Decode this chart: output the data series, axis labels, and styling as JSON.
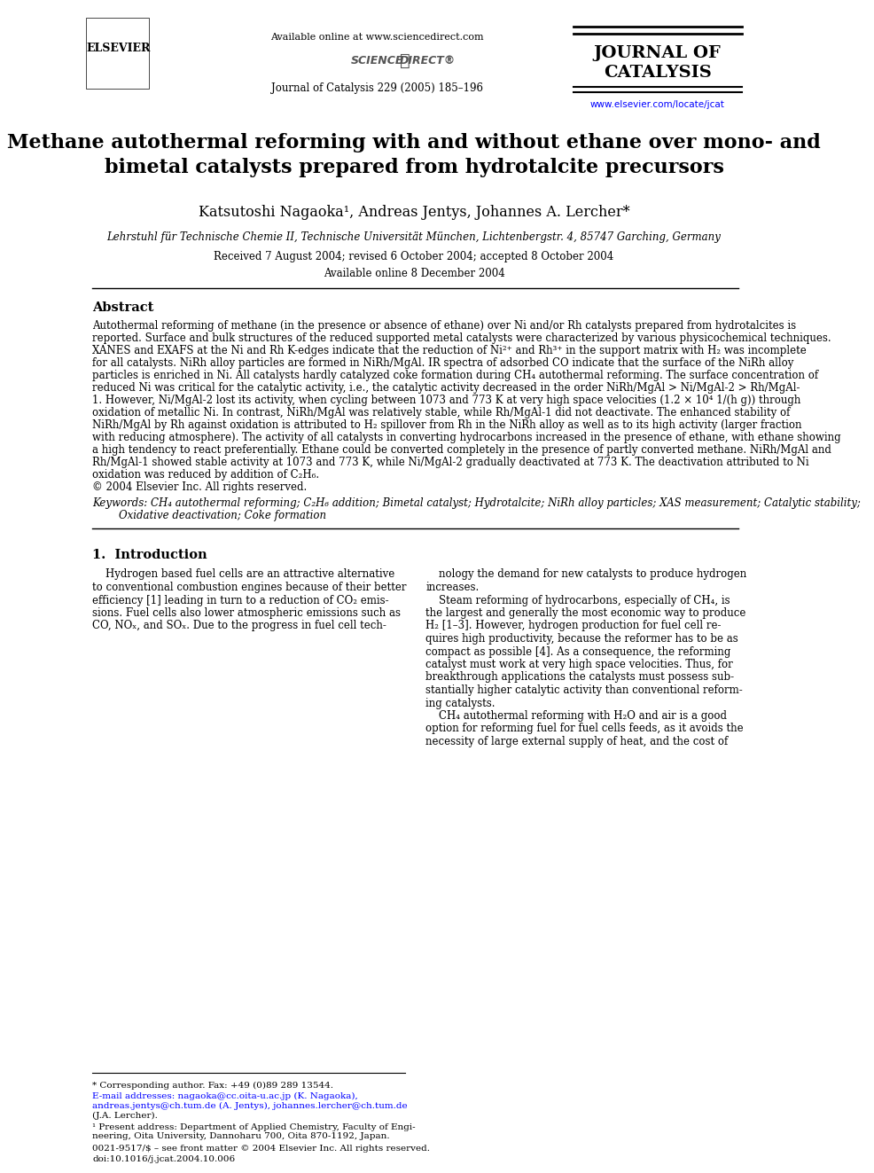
{
  "bg_color": "#ffffff",
  "header": {
    "elsevier_text": "ELSEVIER",
    "available_online": "Available online at www.sciencedirect.com",
    "sciencedirect": "SCIENCE ⓐ DIRECT®",
    "journal_name_line1": "JOURNAL OF",
    "journal_name_line2": "CATALYSIS",
    "journal_ref": "Journal of Catalysis 229 (2005) 185–196",
    "url": "www.elsevier.com/locate/jcat"
  },
  "title": "Methane autothermal reforming with and without ethane over mono- and\nbimetal catalysts prepared from hydrotalcite precursors",
  "authors": "Katsutoshi Nagaoka¹, Andreas Jentys, Johannes A. Lercher*",
  "affiliation": "Lehrstuhl für Technische Chemie II, Technische Universität München, Lichtenbergstr. 4, 85747 Garching, Germany",
  "received": "Received 7 August 2004; revised 6 October 2004; accepted 8 October 2004",
  "available": "Available online 8 December 2004",
  "abstract_title": "Abstract",
  "abstract_body": "Autothermal reforming of methane (in the presence or absence of ethane) over Ni and/or Rh catalysts prepared from hydrotalcites is\nreported. Surface and bulk structures of the reduced supported metal catalysts were characterized by various physicochemical techniques.\nXANES and EXAFS at the Ni and Rh K-edges indicate that the reduction of Ni²⁺ and Rh³⁺ in the support matrix with H₂ was incomplete\nfor all catalysts. NiRh alloy particles are formed in NiRh/MgAl. IR spectra of adsorbed CO indicate that the surface of the NiRh alloy\nparticles is enriched in Ni. All catalysts hardly catalyzed coke formation during CH₄ autothermal reforming. The surface concentration of\nreduced Ni was critical for the catalytic activity, i.e., the catalytic activity decreased in the order NiRh/MgAl > Ni/MgAl-2 > Rh/MgAl-\n1. However, Ni/MgAl-2 lost its activity, when cycling between 1073 and 773 K at very high space velocities (1.2 × 10⁴ 1/(h g)) through\noxidation of metallic Ni. In contrast, NiRh/MgAl was relatively stable, while Rh/MgAl-1 did not deactivate. The enhanced stability of\nNiRh/MgAl by Rh against oxidation is attributed to H₂ spillover from Rh in the NiRh alloy as well as to its high activity (larger fraction\nwith reducing atmosphere). The activity of all catalysts in converting hydrocarbons increased in the presence of ethane, with ethane showing\na high tendency to react preferentially. Ethane could be converted completely in the presence of partly converted methane. NiRh/MgAl and\nRh/MgAl-1 showed stable activity at 1073 and 773 K, while Ni/MgAl-2 gradually deactivated at 773 K. The deactivation attributed to Ni\noxidation was reduced by addition of C₂H₆.\n© 2004 Elsevier Inc. All rights reserved.",
  "keywords_label": "Keywords:",
  "keywords_text": "CH₄ autothermal reforming; C₂H₆ addition; Bimetal catalyst; Hydrotalcite; NiRh alloy particles; XAS measurement; Catalytic stability;\n    Oxidative deactivation; Coke formation",
  "section1_title": "1.  Introduction",
  "section1_col1": "Hydrogen based fuel cells are an attractive alternative\nto conventional combustion engines because of their better\nefficiency [1] leading in turn to a reduction of CO₂ emis-\nsions. Fuel cells also lower atmospheric emissions such as\nCO, NOₓ, and SOₓ. Due to the progress in fuel cell tech-",
  "section1_col2": "nology the demand for new catalysts to produce hydrogen\nincreases.\n    Steam reforming of hydrocarbons, especially of CH₄, is\nthe largest and generally the most economic way to produce\nH₂ [1–3]. However, hydrogen production for fuel cell re-\nquires high productivity, because the reformer has to be as\ncompact as possible [4]. As a consequence, the reforming\ncatalyst must work at very high space velocities. Thus, for\nbreakthrough applications the catalysts must possess sub-\nstantially higher catalytic activity than conventional reform-\ning catalysts.\n    CH₄ autothermal reforming with H₂O and air is a good\noption for reforming fuel for fuel cells feeds, as it avoids the\nnecessity of large external supply of heat, and the cost of",
  "footnote_star": "* Corresponding author. Fax: +49 (0)89 289 13544.",
  "footnote_email": "E-mail addresses: nagaoka@cc.oita-u.ac.jp (K. Nagaoka),\nandreas.jentys@ch.tum.de (A. Jentys), johannes.lercher@ch.tum.de\n(J.A. Lercher).",
  "footnote_1": "¹ Present address: Department of Applied Chemistry, Faculty of Engi-\nneering, Oita University, Dannoharu 700, Oita 870-1192, Japan.",
  "footer_issn": "0021-9517/$ – see front matter © 2004 Elsevier Inc. All rights reserved.",
  "footer_doi": "doi:10.1016/j.jcat.2004.10.006"
}
